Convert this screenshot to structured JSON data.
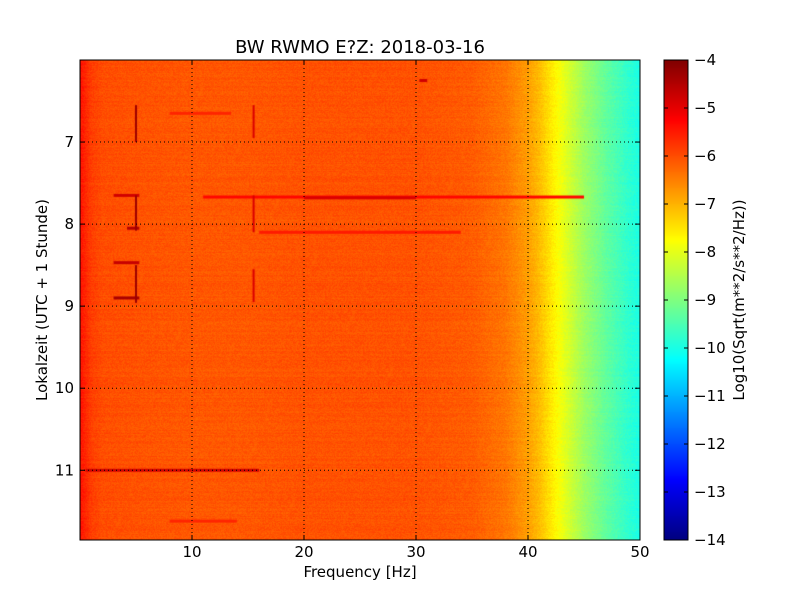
{
  "chart_data": {
    "type": "heatmap",
    "title": "BW RWMO E?Z: 2018-03-16",
    "xlabel": "Frequency [Hz]",
    "ylabel": "Lokalzeit (UTC + 1 Stunde)",
    "xlim": [
      0,
      50
    ],
    "ylim": [
      6.0,
      11.85
    ],
    "y_inverted": true,
    "x_ticks": [
      "10",
      "20",
      "30",
      "40",
      "50"
    ],
    "x_tick_values": [
      10,
      20,
      30,
      40,
      50
    ],
    "y_ticks": [
      "7",
      "8",
      "9",
      "10",
      "11"
    ],
    "y_tick_values": [
      7,
      8,
      9,
      10,
      11
    ],
    "grid": true,
    "colormap": "jet",
    "colorbar": {
      "label": "Log10(Sqrt(m**2/s**2/Hz))",
      "range": [
        -14,
        -4
      ],
      "ticks": [
        "−4",
        "−5",
        "−6",
        "−7",
        "−8",
        "−9",
        "−10",
        "−11",
        "−12",
        "−13",
        "−14"
      ],
      "tick_values": [
        -4,
        -5,
        -6,
        -7,
        -8,
        -9,
        -10,
        -11,
        -12,
        -13,
        -14
      ]
    },
    "frequency_profile": {
      "freq": [
        0,
        1,
        2,
        5,
        10,
        15,
        20,
        25,
        30,
        35,
        38,
        40,
        41,
        42,
        43,
        44,
        45,
        46,
        47,
        48,
        49,
        50
      ],
      "value": [
        -5.4,
        -5.85,
        -6.0,
        -6.05,
        -6.1,
        -6.1,
        -6.05,
        -6.05,
        -6.05,
        -6.15,
        -6.4,
        -6.8,
        -7.1,
        -7.5,
        -7.9,
        -8.3,
        -8.7,
        -9.0,
        -9.3,
        -9.55,
        -9.8,
        -10.0
      ]
    },
    "narrowband_lines": [
      {
        "freq": 5.0,
        "t_start": 6.55,
        "t_end": 7.0,
        "value": -4.3
      },
      {
        "freq": 5.0,
        "t_start": 7.65,
        "t_end": 8.08,
        "value": -4.3
      },
      {
        "freq": 5.0,
        "t_start": 8.5,
        "t_end": 8.96,
        "value": -4.3
      },
      {
        "freq": 15.5,
        "t_start": 6.55,
        "t_end": 6.95,
        "value": -4.9
      },
      {
        "freq": 15.5,
        "t_start": 7.65,
        "t_end": 8.1,
        "value": -4.9
      },
      {
        "freq": 15.5,
        "t_start": 8.55,
        "t_end": 8.95,
        "value": -4.9
      }
    ],
    "broadband_events": [
      {
        "time": 7.67,
        "f_start": 11.0,
        "f_end": 45.0,
        "value": -5.3
      },
      {
        "time": 7.68,
        "f_start": 20.0,
        "f_end": 30.0,
        "value": -4.9
      },
      {
        "time": 8.1,
        "f_start": 16.0,
        "f_end": 34.0,
        "value": -5.5
      },
      {
        "time": 11.0,
        "f_start": 0.5,
        "f_end": 16.0,
        "value": -4.8
      },
      {
        "time": 8.9,
        "f_start": 3.0,
        "f_end": 5.3,
        "value": -4.4
      },
      {
        "time": 8.05,
        "f_start": 4.2,
        "f_end": 5.3,
        "value": -4.5
      },
      {
        "time": 8.47,
        "f_start": 3.0,
        "f_end": 5.3,
        "value": -4.7
      },
      {
        "time": 7.65,
        "f_start": 3.0,
        "f_end": 5.3,
        "value": -4.8
      },
      {
        "time": 11.62,
        "f_start": 8.0,
        "f_end": 14.0,
        "value": -5.6
      },
      {
        "time": 6.65,
        "f_start": 8.0,
        "f_end": 13.5,
        "value": -5.6
      },
      {
        "time": 6.25,
        "f_start": 30.3,
        "f_end": 31.0,
        "value": -4.8
      }
    ]
  }
}
